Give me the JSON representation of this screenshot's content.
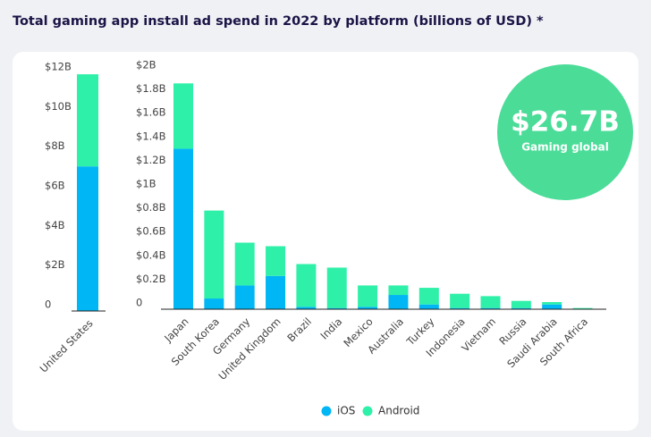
{
  "chart_data": [
    {
      "type": "stacked_bar",
      "title": "Total gaming app install ad spend in 2022 by platform (billions of USD) *",
      "categories": [
        "United States"
      ],
      "series": [
        {
          "color": "#00b6f4",
          "values": [
            7.3
          ]
        },
        {
          "color": "#2ff0a8",
          "values": [
            4.65
          ]
        }
      ],
      "ylim": [
        0,
        12
      ],
      "yticks": [
        0,
        {
          "value": 2,
          "label": "$2B"
        },
        {
          "value": 4,
          "label": "$4B"
        },
        {
          "value": 6,
          "label": "$6B"
        },
        {
          "value": 8,
          "label": "$8B"
        },
        {
          "value": 10,
          "label": "$10B"
        },
        {
          "value": 12,
          "label": "$12B"
        }
      ],
      "grid": false
    },
    {
      "type": "stacked_bar",
      "categories": [
        "Japan",
        "South Korea",
        "Germany",
        "United Kingdom",
        "Brazil",
        "India",
        "Mexico",
        "Australia",
        "Turkey",
        "Indonesia",
        "Vietnam",
        "Russia",
        "Saudi Arabia",
        "South Africa"
      ],
      "series": [
        {
          "name": "iOS",
          "color": "#00b6f4",
          "values": [
            1.35,
            0.09,
            0.2,
            0.28,
            0.02,
            0.01,
            0.02,
            0.12,
            0.04,
            0.01,
            0.01,
            0.01,
            0.04,
            0
          ]
        },
        {
          "name": "Android",
          "color": "#2ff0a8",
          "values": [
            0.55,
            0.74,
            0.36,
            0.25,
            0.36,
            0.34,
            0.18,
            0.08,
            0.14,
            0.12,
            0.1,
            0.06,
            0.02,
            0.01
          ]
        }
      ],
      "ylim": [
        0,
        2
      ],
      "yticks": [
        0,
        {
          "value": 0.2,
          "label": "$0.2B"
        },
        {
          "value": 0.4,
          "label": "$0.4B"
        },
        {
          "value": 0.6,
          "label": "$0.6B"
        },
        {
          "value": 0.8,
          "label": "$0.8B"
        },
        {
          "value": 1,
          "label": "$1B"
        },
        {
          "value": 1.2,
          "label": "$1.2B"
        },
        {
          "value": 1.4,
          "label": "$1.4B"
        },
        {
          "value": 1.6,
          "label": "$1.6B"
        },
        {
          "value": 1.8,
          "label": "$1.8B"
        },
        {
          "value": 2,
          "label": "$2B"
        }
      ],
      "grid": false,
      "annotations": [
        "$26.7B",
        "Gaming global"
      ]
    }
  ]
}
